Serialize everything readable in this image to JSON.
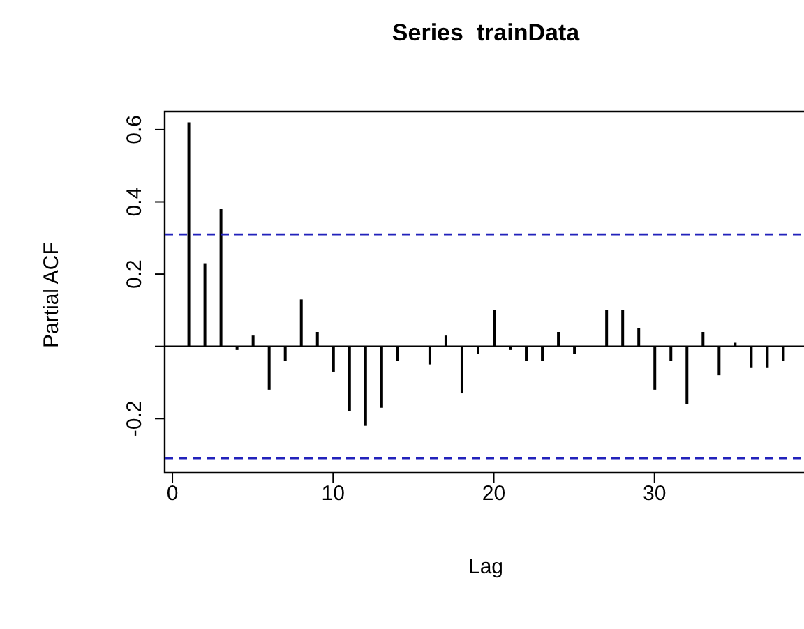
{
  "chart_data": {
    "type": "bar",
    "title": "Series  trainData",
    "xlabel": "Lag",
    "ylabel": "Partial ACF",
    "x": [
      1,
      2,
      3,
      4,
      5,
      6,
      7,
      8,
      9,
      10,
      11,
      12,
      13,
      14,
      15,
      16,
      17,
      18,
      19,
      20,
      21,
      22,
      23,
      24,
      25,
      26,
      27,
      28,
      29,
      30,
      31,
      32,
      33,
      34,
      35,
      36,
      37,
      38
    ],
    "series": [
      {
        "color": "#000000",
        "values": [
          0.62,
          0.23,
          0.38,
          -0.01,
          0.03,
          -0.12,
          -0.04,
          0.13,
          0.04,
          -0.07,
          -0.18,
          -0.22,
          -0.17,
          -0.04,
          0,
          -0.05,
          0.03,
          -0.13,
          -0.02,
          0.1,
          -0.01,
          -0.04,
          -0.04,
          0.04,
          -0.02,
          0,
          0.1,
          0.1,
          0.05,
          -0.12,
          -0.04,
          -0.16,
          0.04,
          -0.08,
          0.01,
          -0.06,
          -0.06,
          -0.04
        ]
      }
    ],
    "ref_lines": [
      {
        "axis": "y",
        "value": 0,
        "color": "#000000",
        "line_style": "solid"
      },
      {
        "axis": "y",
        "value": 0.31,
        "color": "#2222bb",
        "line_style": "dashed"
      },
      {
        "axis": "y",
        "value": -0.31,
        "color": "#2222bb",
        "line_style": "dashed"
      }
    ],
    "xlim": [
      -0.48,
      39.48
    ],
    "xticks": [
      0,
      10,
      20,
      30
    ],
    "ylim": [
      -0.35,
      0.65
    ],
    "yticks": [
      -0.2,
      {
        "value": 0,
        "label": null
      },
      0.2,
      0.4,
      0.6
    ],
    "grid": false,
    "legend": false
  }
}
